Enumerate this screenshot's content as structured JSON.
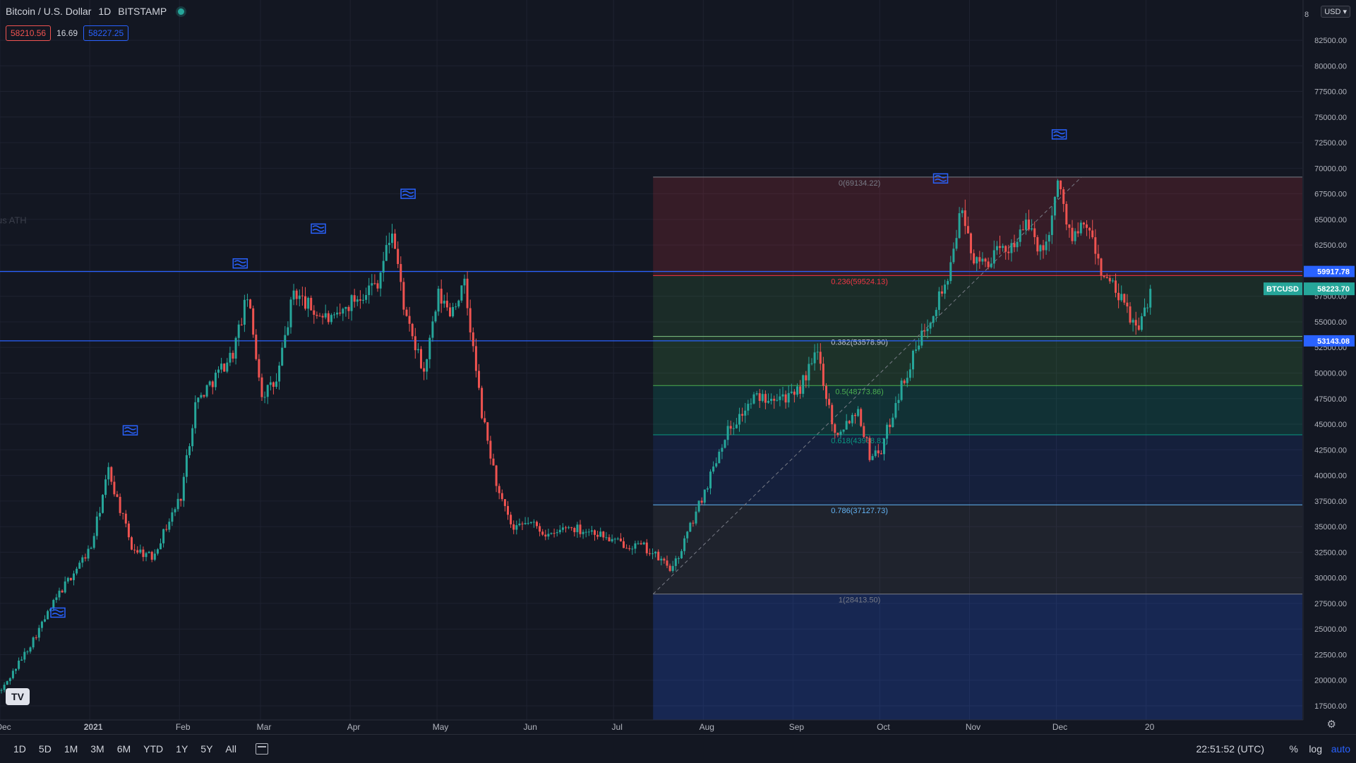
{
  "header": {
    "symbol_title": "Bitcoin / U.S. Dollar",
    "interval": "1D",
    "exchange": "BITSTAMP",
    "bid": "58210.56",
    "spread": "16.69",
    "ask": "58227.25",
    "currency": "USD"
  },
  "colors": {
    "background": "#131722",
    "up_candle": "#26a69a",
    "down_candle": "#ef5350",
    "horizontal_line": "#2962ff",
    "flag": "#2962ff",
    "fib_dashed": "#787b86"
  },
  "chart_data": {
    "type": "candlestick",
    "title": "Bitcoin / U.S. Dollar, 1D, BITSTAMP",
    "y_axis": {
      "min": 17500,
      "max": 82500,
      "ticks": [
        "82500.00",
        "80000.00",
        "77500.00",
        "75000.00",
        "72500.00",
        "70000.00",
        "67500.00",
        "65000.00",
        "62500.00",
        "60000.00",
        "57500.00",
        "55000.00",
        "52500.00",
        "50000.00",
        "47500.00",
        "45000.00",
        "42500.00",
        "40000.00",
        "37500.00",
        "35000.00",
        "32500.00",
        "30000.00",
        "27500.00",
        "25000.00",
        "22500.00",
        "20000.00",
        "17500.00"
      ],
      "top_label": "8"
    },
    "x_axis": {
      "labels": [
        "Dec",
        "2021",
        "Feb",
        "Mar",
        "Apr",
        "May",
        "Jun",
        "Jul",
        "Aug",
        "Sep",
        "Oct",
        "Nov",
        "Dec",
        "20"
      ],
      "label_days": [
        0,
        31,
        62,
        90,
        121,
        151,
        182,
        212,
        243,
        274,
        304,
        335,
        365,
        396
      ],
      "start": "2020-12-01",
      "days_span": 396
    },
    "price_path": [
      [
        0,
        19000
      ],
      [
        10,
        23500
      ],
      [
        20,
        28500
      ],
      [
        31,
        33000
      ],
      [
        37,
        40500
      ],
      [
        45,
        33000
      ],
      [
        52,
        32000
      ],
      [
        62,
        38000
      ],
      [
        67,
        47000
      ],
      [
        80,
        52000
      ],
      [
        85,
        57500
      ],
      [
        90,
        48000
      ],
      [
        95,
        49000
      ],
      [
        101,
        58000
      ],
      [
        108,
        56000
      ],
      [
        115,
        55000
      ],
      [
        121,
        57000
      ],
      [
        130,
        59000
      ],
      [
        135,
        64000
      ],
      [
        140,
        55000
      ],
      [
        146,
        50000
      ],
      [
        151,
        57500
      ],
      [
        155,
        56000
      ],
      [
        160,
        58500
      ],
      [
        166,
        46000
      ],
      [
        172,
        38000
      ],
      [
        177,
        34500
      ],
      [
        182,
        35500
      ],
      [
        190,
        34000
      ],
      [
        195,
        35000
      ],
      [
        205,
        34500
      ],
      [
        212,
        33500
      ],
      [
        222,
        33000
      ],
      [
        232,
        30800
      ],
      [
        243,
        38500
      ],
      [
        250,
        44000
      ],
      [
        260,
        47500
      ],
      [
        268,
        48000
      ],
      [
        274,
        47500
      ],
      [
        282,
        52000
      ],
      [
        288,
        44000
      ],
      [
        296,
        46500
      ],
      [
        300,
        42000
      ],
      [
        304,
        42500
      ],
      [
        310,
        48000
      ],
      [
        320,
        55000
      ],
      [
        328,
        60000
      ],
      [
        331,
        66000
      ],
      [
        337,
        60500
      ],
      [
        347,
        62000
      ],
      [
        355,
        64500
      ],
      [
        360,
        61500
      ],
      [
        365,
        68500
      ],
      [
        370,
        63000
      ],
      [
        375,
        64500
      ],
      [
        380,
        60000
      ],
      [
        387,
        57000
      ],
      [
        393,
        54000
      ],
      [
        397,
        58223
      ]
    ],
    "last_close": 58223.7,
    "horizontal_lines": [
      {
        "price": 59917.78,
        "label": "59917.78"
      },
      {
        "price": 53143.08,
        "label": "53143.08"
      }
    ],
    "price_label": {
      "name": "BTCUSD",
      "value": "58223.70"
    },
    "fib_retracement": {
      "start_day": 222,
      "end_day": 370,
      "low": 28413.5,
      "high": 69134.22,
      "levels": [
        {
          "ratio": 0,
          "price": 69134.22,
          "text": "0(69134.22)",
          "fill": "rgba(242,54,69,0.16)",
          "line": "#787b86",
          "label_color": "#787b86"
        },
        {
          "ratio": 0.236,
          "price": 59524.13,
          "text": "0.236(59524.13)",
          "fill": "rgba(76,175,80,0.14)",
          "line": "#f23645",
          "label_color": "#f23645"
        },
        {
          "ratio": 0.382,
          "price": 53578.9,
          "text": "0.382(53578.90)",
          "fill": "rgba(76,175,80,0.18)",
          "line": "#81c784",
          "label_color": "#c5c8d0"
        },
        {
          "ratio": 0.5,
          "price": 48773.86,
          "text": "0.5(48773.86)",
          "fill": "rgba(8,153,129,0.20)",
          "line": "#4caf50",
          "label_color": "#4caf50"
        },
        {
          "ratio": 0.618,
          "price": 43968.81,
          "text": "0.618(43968.81)",
          "fill": "rgba(41,98,255,0.12)",
          "line": "#089981",
          "label_color": "#089981"
        },
        {
          "ratio": 0.786,
          "price": 37127.73,
          "text": "0.786(37127.73)",
          "fill": "rgba(120,123,134,0.12)",
          "line": "#64b5f6",
          "label_color": "#64b5f6"
        },
        {
          "ratio": 1,
          "price": 28413.5,
          "text": "1(28413.50)",
          "fill": "rgba(41,98,255,0.22)",
          "line": "#787b86",
          "label_color": "#787b86"
        }
      ]
    },
    "flags": [
      {
        "day": 20,
        "price": 26500
      },
      {
        "day": 45,
        "price": 44300
      },
      {
        "day": 83,
        "price": 60600
      },
      {
        "day": 110,
        "price": 64000
      },
      {
        "day": 141,
        "price": 67400
      },
      {
        "day": 325,
        "price": 68900
      },
      {
        "day": 366,
        "price": 73200
      }
    ],
    "side_annotation": "ATH"
  },
  "bottom_bar": {
    "ranges": [
      "1D",
      "5D",
      "1M",
      "3M",
      "6M",
      "YTD",
      "1Y",
      "5Y",
      "All"
    ],
    "time": "22:51:52 (UTC)",
    "percent": "%",
    "log": "log",
    "auto": "auto"
  }
}
